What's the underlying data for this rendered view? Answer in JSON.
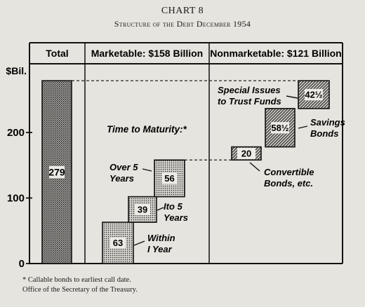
{
  "title": "CHART 8",
  "subtitle": "Structure of the Debt December 1954",
  "footnote": "* Callable bonds to earliest call date.",
  "source": "Office of the Secretary of the Treasury.",
  "chart_data": {
    "type": "bar",
    "y_unit_label": "$Bil.",
    "ylim": [
      0,
      300
    ],
    "yticks": [
      0,
      100,
      200
    ],
    "grid": false,
    "panels": [
      {
        "key": "total",
        "header": "Total"
      },
      {
        "key": "marketable",
        "header": "Marketable: $158 Billion"
      },
      {
        "key": "nonmarketable",
        "header": "Nonmarketable: $121 Billion"
      }
    ],
    "total": {
      "value": 279,
      "label": "279"
    },
    "marketable_title": "Time to Maturity:*",
    "marketable": [
      {
        "name": "Within 1 Year",
        "label": "63",
        "value": 63
      },
      {
        "name": "1 to 5 Years",
        "label": "39",
        "value": 39
      },
      {
        "name": "Over 5 Years",
        "label": "56",
        "value": 56
      }
    ],
    "nonmarketable": [
      {
        "name": "Convertible Bonds, etc.",
        "label": "20",
        "value": 20
      },
      {
        "name": "Savings Bonds",
        "label": "58½",
        "value": 58.5
      },
      {
        "name": "Special Issues to Trust Funds",
        "label": "42½",
        "value": 42.5
      }
    ]
  }
}
